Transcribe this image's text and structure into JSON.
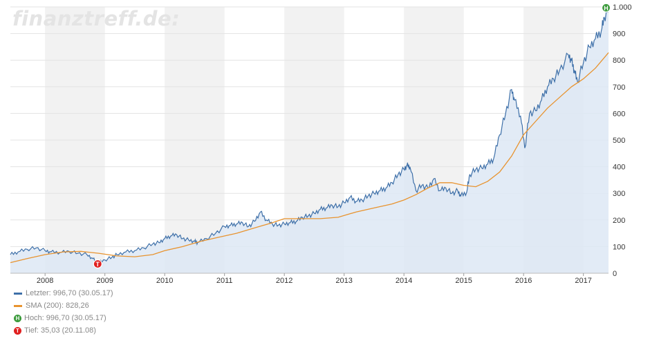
{
  "watermark": "finanztreff.de:",
  "chart_data": {
    "type": "line",
    "title": "",
    "xlabel": "",
    "ylabel": "",
    "x_range": [
      2007.42,
      2017.42
    ],
    "ylim": [
      0,
      1000
    ],
    "x_ticks": [
      {
        "value": 2008,
        "label": "2008"
      },
      {
        "value": 2009,
        "label": "2009"
      },
      {
        "value": 2010,
        "label": "2010"
      },
      {
        "value": 2011,
        "label": "2011"
      },
      {
        "value": 2012,
        "label": "2012"
      },
      {
        "value": 2013,
        "label": "2013"
      },
      {
        "value": 2014,
        "label": "2014"
      },
      {
        "value": 2015,
        "label": "2015"
      },
      {
        "value": 2016,
        "label": "2016"
      },
      {
        "value": 2017,
        "label": "2017"
      }
    ],
    "y_ticks": [
      {
        "value": 0,
        "label": "0"
      },
      {
        "value": 100,
        "label": "100"
      },
      {
        "value": 200,
        "label": "200"
      },
      {
        "value": 300,
        "label": "300"
      },
      {
        "value": 400,
        "label": "400"
      },
      {
        "value": 500,
        "label": "500"
      },
      {
        "value": 600,
        "label": "600"
      },
      {
        "value": 700,
        "label": "700"
      },
      {
        "value": 800,
        "label": "800"
      },
      {
        "value": 900,
        "label": "900"
      },
      {
        "value": 1000,
        "label": "1.000"
      }
    ],
    "grid": true,
    "legend_position": "bottom-left",
    "series": [
      {
        "name": "Letzter: 996,70 (30.05.17)",
        "color": "#3d6fa8",
        "fill": "#dde8f4",
        "x": [
          2007.42,
          2007.55,
          2007.7,
          2007.85,
          2008.0,
          2008.1,
          2008.25,
          2008.4,
          2008.55,
          2008.7,
          2008.8,
          2008.88,
          2009.0,
          2009.12,
          2009.2,
          2009.35,
          2009.5,
          2009.65,
          2009.8,
          2009.9,
          2010.0,
          2010.1,
          2010.2,
          2010.3,
          2010.4,
          2010.5,
          2010.55,
          2010.7,
          2010.85,
          2011.0,
          2011.1,
          2011.2,
          2011.3,
          2011.4,
          2011.5,
          2011.6,
          2011.7,
          2011.8,
          2011.9,
          2012.0,
          2012.1,
          2012.2,
          2012.3,
          2012.4,
          2012.5,
          2012.6,
          2012.7,
          2012.8,
          2012.9,
          2013.0,
          2013.1,
          2013.2,
          2013.3,
          2013.4,
          2013.5,
          2013.6,
          2013.7,
          2013.8,
          2013.9,
          2014.0,
          2014.05,
          2014.1,
          2014.2,
          2014.3,
          2014.4,
          2014.5,
          2014.6,
          2014.7,
          2014.8,
          2014.9,
          2014.95,
          2015.05,
          2015.1,
          2015.2,
          2015.3,
          2015.4,
          2015.5,
          2015.6,
          2015.7,
          2015.8,
          2015.85,
          2015.95,
          2016.02,
          2016.1,
          2016.2,
          2016.3,
          2016.4,
          2016.5,
          2016.6,
          2016.75,
          2016.8,
          2016.85,
          2016.9,
          2017.0,
          2017.1,
          2017.2,
          2017.3,
          2017.35,
          2017.42
        ],
        "y": [
          70,
          80,
          90,
          95,
          85,
          80,
          78,
          82,
          75,
          70,
          55,
          38,
          50,
          60,
          70,
          80,
          85,
          95,
          110,
          115,
          130,
          140,
          145,
          130,
          125,
          120,
          115,
          130,
          150,
          175,
          180,
          185,
          190,
          175,
          195,
          230,
          200,
          185,
          180,
          185,
          190,
          195,
          210,
          215,
          225,
          240,
          245,
          255,
          250,
          265,
          285,
          270,
          275,
          290,
          300,
          310,
          320,
          340,
          370,
          390,
          405,
          400,
          310,
          330,
          320,
          355,
          310,
          320,
          300,
          310,
          290,
          305,
          370,
          390,
          395,
          410,
          430,
          520,
          600,
          690,
          650,
          590,
          470,
          600,
          610,
          650,
          700,
          730,
          760,
          820,
          800,
          760,
          720,
          790,
          850,
          880,
          910,
          960,
          996.7
        ]
      },
      {
        "name": "SMA (200): 828,26",
        "color": "#e8932e",
        "x": [
          2007.42,
          2007.7,
          2008.0,
          2008.3,
          2008.6,
          2008.9,
          2009.2,
          2009.5,
          2009.8,
          2010.0,
          2010.3,
          2010.6,
          2010.9,
          2011.2,
          2011.5,
          2011.8,
          2012.0,
          2012.3,
          2012.6,
          2012.9,
          2013.2,
          2013.5,
          2013.8,
          2014.0,
          2014.2,
          2014.4,
          2014.6,
          2014.8,
          2015.0,
          2015.2,
          2015.4,
          2015.6,
          2015.8,
          2016.0,
          2016.2,
          2016.4,
          2016.6,
          2016.8,
          2017.0,
          2017.2,
          2017.42
        ],
        "y": [
          40,
          55,
          70,
          80,
          82,
          75,
          65,
          62,
          70,
          85,
          100,
          120,
          135,
          150,
          170,
          190,
          205,
          205,
          205,
          210,
          230,
          245,
          260,
          275,
          295,
          320,
          340,
          340,
          330,
          325,
          345,
          380,
          440,
          520,
          570,
          620,
          660,
          700,
          730,
          770,
          828.26
        ]
      }
    ],
    "markers": [
      {
        "label": "H",
        "x": 2017.38,
        "y": 996.7,
        "color": "#3a9a3a"
      },
      {
        "label": "T",
        "x": 2008.88,
        "y": 35.03,
        "color": "#e02020"
      }
    ],
    "legend": [
      {
        "kind": "line",
        "color": "#3d6fa8",
        "text": "Letzter: 996,70 (30.05.17)"
      },
      {
        "kind": "line",
        "color": "#e8932e",
        "text": "SMA (200): 828,26"
      },
      {
        "kind": "marker",
        "color": "#3a9a3a",
        "glyph": "H",
        "text": "Hoch: 996,70 (30.05.17)"
      },
      {
        "kind": "marker",
        "color": "#e02020",
        "glyph": "T",
        "text": "Tief: 35,03 (20.11.08)"
      }
    ]
  }
}
